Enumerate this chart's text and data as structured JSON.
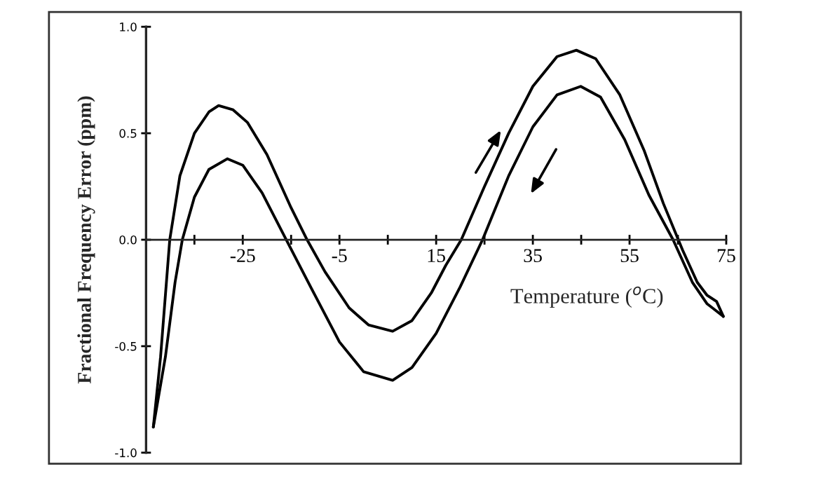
{
  "chart_data": {
    "type": "line",
    "xlabel": "Temperature ($^{o}$C)",
    "ylabel": "Fractional Frequency Error (ppm)",
    "xlim": [
      -45,
      75
    ],
    "ylim": [
      -1.0,
      1.0
    ],
    "xticks": [
      {
        "value": -35,
        "label": null
      },
      {
        "value": -25,
        "label": "-25"
      },
      {
        "value": -15,
        "label": null
      },
      {
        "value": -5,
        "label": "-5"
      },
      {
        "value": 5,
        "label": null
      },
      {
        "value": 15,
        "label": "15"
      },
      {
        "value": 25,
        "label": null
      },
      {
        "value": 35,
        "label": "35"
      },
      {
        "value": 45,
        "label": null
      },
      {
        "value": 55,
        "label": "55"
      },
      {
        "value": 65,
        "label": null
      },
      {
        "value": 75,
        "label": "75"
      }
    ],
    "yticks": [
      {
        "value": -1.0,
        "label": "-1.0"
      },
      {
        "value": -0.5,
        "label": "-0.5"
      },
      {
        "value": 0.0,
        "label": "0.0"
      },
      {
        "value": 0.5,
        "label": "0.5"
      },
      {
        "value": 1.0,
        "label": "1.0"
      }
    ],
    "grid": false,
    "marker": "none",
    "line_style": "solid",
    "series": [
      {
        "color": "#000000",
        "x": [
          -43.5,
          -42,
          -40.1,
          -38,
          -35,
          -32,
          -30,
          -27,
          -24,
          -20,
          -15,
          -11.7,
          -8,
          -3,
          1,
          6,
          10,
          14,
          17,
          20.2,
          25,
          30,
          35,
          40,
          44,
          48,
          53,
          58,
          62,
          66,
          69,
          71,
          73,
          74.4
        ],
        "values": [
          -0.88,
          -0.55,
          0,
          0.3,
          0.5,
          0.6,
          0.63,
          0.61,
          0.55,
          0.4,
          0.15,
          0,
          -0.15,
          -0.32,
          -0.4,
          -0.43,
          -0.38,
          -0.25,
          -0.12,
          0,
          0.25,
          0.5,
          0.72,
          0.86,
          0.89,
          0.85,
          0.68,
          0.42,
          0.17,
          -0.05,
          -0.2,
          -0.26,
          -0.29,
          -0.36
        ]
      },
      {
        "color": "#000000",
        "x": [
          -43.5,
          -41,
          -39,
          -37.5,
          -35,
          -32,
          -28.2,
          -25,
          -21,
          -16,
          -11,
          -5,
          0,
          6,
          10,
          15,
          20,
          24.6,
          30,
          35,
          40,
          44.9,
          49,
          54,
          59,
          64,
          68,
          71,
          74.4
        ],
        "values": [
          -0.88,
          -0.55,
          -0.2,
          0,
          0.2,
          0.33,
          0.38,
          0.35,
          0.22,
          0,
          -0.22,
          -0.48,
          -0.62,
          -0.66,
          -0.6,
          -0.44,
          -0.22,
          0,
          0.3,
          0.53,
          0.68,
          0.72,
          0.67,
          0.47,
          0.21,
          0,
          -0.2,
          -0.3,
          -0.36
        ]
      }
    ]
  }
}
